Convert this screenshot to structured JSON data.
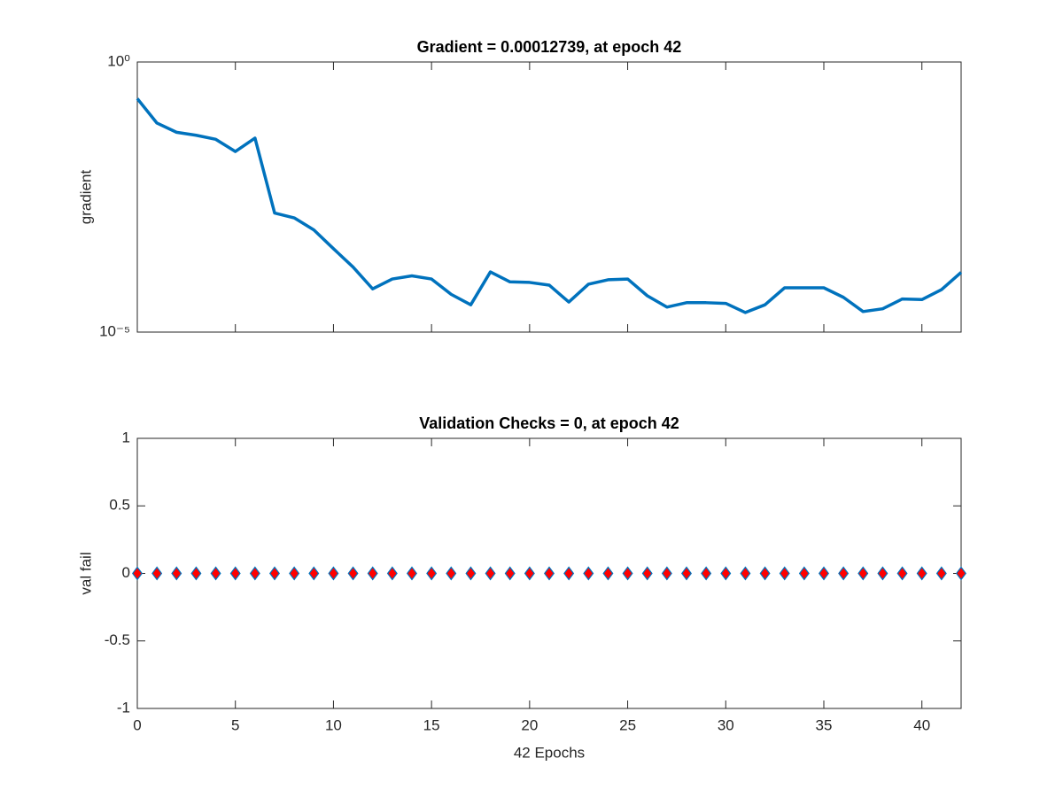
{
  "chart_data": [
    {
      "type": "line",
      "title": "Gradient = 0.00012739, at epoch 42",
      "ylabel": "gradient",
      "y_scale": "log",
      "ylim": [
        1e-05,
        1
      ],
      "yticks": [
        {
          "value": 1e-05,
          "label": "10⁻⁵"
        },
        {
          "value": 1,
          "label": "10⁰"
        }
      ],
      "xlim": [
        0,
        42
      ],
      "xticks": [
        0,
        5,
        10,
        15,
        20,
        25,
        30,
        35,
        40
      ],
      "show_xtick_labels": false,
      "x": [
        0,
        1,
        2,
        3,
        4,
        5,
        6,
        7,
        8,
        9,
        10,
        11,
        12,
        13,
        14,
        15,
        16,
        17,
        18,
        19,
        20,
        21,
        22,
        23,
        24,
        25,
        26,
        27,
        28,
        29,
        30,
        31,
        32,
        33,
        34,
        35,
        36,
        37,
        38,
        39,
        40,
        41,
        42
      ],
      "series": [
        {
          "color": "#0072BD",
          "values": [
            0.21,
            0.074,
            0.05,
            0.044,
            0.037,
            0.022,
            0.039,
            0.0016,
            0.0013,
            0.00078,
            0.00035,
            0.00016,
            6.3e-05,
            9.6e-05,
            0.00011,
            9.6e-05,
            5e-05,
            3.2e-05,
            0.00013,
            8.5e-05,
            8.3e-05,
            7.4e-05,
            3.6e-05,
            7.7e-05,
            9.3e-05,
            9.6e-05,
            4.7e-05,
            2.9e-05,
            3.5e-05,
            3.5e-05,
            3.4e-05,
            2.3e-05,
            3.2e-05,
            6.6e-05,
            6.6e-05,
            6.6e-05,
            4.4e-05,
            2.4e-05,
            2.7e-05,
            4.1e-05,
            4e-05,
            6.1e-05,
            0.00012739
          ]
        }
      ]
    },
    {
      "type": "scatter",
      "title": "Validation Checks = 0, at epoch 42",
      "ylabel": "val fail",
      "xlabel": "42 Epochs",
      "ylim": [
        -1,
        1
      ],
      "yticks": [
        -1,
        -0.5,
        0,
        0.5,
        1
      ],
      "xlim": [
        0,
        42
      ],
      "xticks": [
        0,
        5,
        10,
        15,
        20,
        25,
        30,
        35,
        40
      ],
      "show_xtick_labels": true,
      "x": [
        0,
        1,
        2,
        3,
        4,
        5,
        6,
        7,
        8,
        9,
        10,
        11,
        12,
        13,
        14,
        15,
        16,
        17,
        18,
        19,
        20,
        21,
        22,
        23,
        24,
        25,
        26,
        27,
        28,
        29,
        30,
        31,
        32,
        33,
        34,
        35,
        36,
        37,
        38,
        39,
        40,
        41,
        42
      ],
      "series": [
        {
          "color": "#0072BD",
          "marker_face": "#FF0000",
          "values": [
            0,
            0,
            0,
            0,
            0,
            0,
            0,
            0,
            0,
            0,
            0,
            0,
            0,
            0,
            0,
            0,
            0,
            0,
            0,
            0,
            0,
            0,
            0,
            0,
            0,
            0,
            0,
            0,
            0,
            0,
            0,
            0,
            0,
            0,
            0,
            0,
            0,
            0,
            0,
            0,
            0,
            0,
            0
          ]
        }
      ]
    }
  ]
}
